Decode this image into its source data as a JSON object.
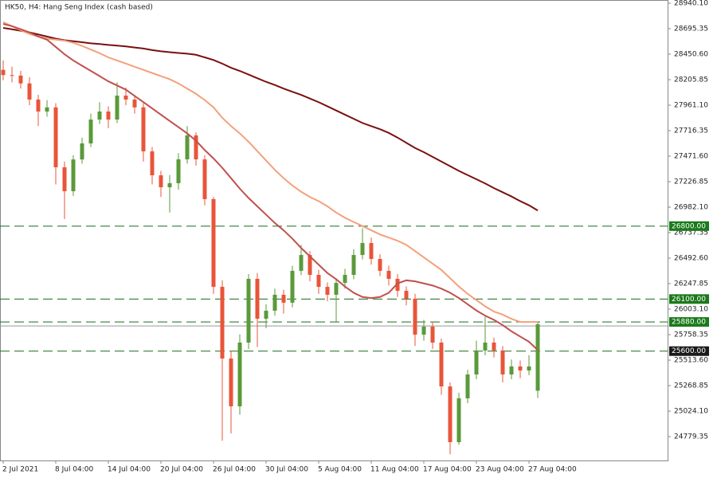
{
  "chart_data": {
    "type": "candlestick",
    "title": "HK50, H4:  Hang Seng Index (cash based)",
    "categories": [
      "2 Jul 2021",
      null,
      null,
      null,
      null,
      null,
      "8 Jul 04:00",
      null,
      null,
      null,
      null,
      null,
      "14 Jul 04:00",
      null,
      null,
      null,
      null,
      null,
      "20 Jul 04:00",
      null,
      null,
      null,
      null,
      null,
      "26 Jul 04:00",
      null,
      null,
      null,
      null,
      null,
      "30 Jul 04:00",
      null,
      null,
      null,
      null,
      null,
      "5 Aug 04:00",
      null,
      null,
      null,
      null,
      null,
      "11 Aug 04:00",
      null,
      null,
      null,
      null,
      null,
      "17 Aug 04:00",
      null,
      null,
      null,
      null,
      null,
      "23 Aug 04:00",
      null,
      null,
      null,
      null,
      null,
      "27 Aug 04:00",
      null
    ],
    "candles": [
      [
        28300,
        28390,
        28200,
        28250
      ],
      [
        28250,
        28330,
        28180,
        28245
      ],
      [
        28245,
        28290,
        28120,
        28170
      ],
      [
        28170,
        28230,
        27960,
        28015
      ],
      [
        28015,
        28060,
        27760,
        27900
      ],
      [
        27900,
        28010,
        27850,
        27940
      ],
      [
        27940,
        27980,
        27200,
        27365
      ],
      [
        27365,
        27420,
        26868,
        27135
      ],
      [
        27135,
        27480,
        27090,
        27440
      ],
      [
        27440,
        27650,
        27400,
        27594
      ],
      [
        27594,
        27880,
        27560,
        27823
      ],
      [
        27823,
        27990,
        27780,
        27900
      ],
      [
        27900,
        27950,
        27740,
        27823
      ],
      [
        27823,
        28180,
        27790,
        28053
      ],
      [
        28053,
        28130,
        27960,
        28015
      ],
      [
        28015,
        28060,
        27880,
        27940
      ],
      [
        27940,
        27980,
        27420,
        27518
      ],
      [
        27518,
        27560,
        27200,
        27288
      ],
      [
        27288,
        27330,
        27080,
        27173
      ],
      [
        27173,
        27290,
        26930,
        27212
      ],
      [
        27212,
        27500,
        27150,
        27441
      ],
      [
        27441,
        27760,
        27400,
        27671
      ],
      [
        27671,
        27700,
        27380,
        27441
      ],
      [
        27441,
        27480,
        27000,
        27059
      ],
      [
        27059,
        27080,
        26150,
        26217
      ],
      [
        26217,
        26280,
        24740,
        25529
      ],
      [
        25529,
        25600,
        24810,
        25070
      ],
      [
        25070,
        25760,
        24990,
        25682
      ],
      [
        25682,
        26340,
        25620,
        26294
      ],
      [
        26294,
        26350,
        25640,
        25911
      ],
      [
        25911,
        26050,
        25820,
        25988
      ],
      [
        25988,
        26200,
        25940,
        26141
      ],
      [
        26141,
        26190,
        25960,
        26065
      ],
      [
        26065,
        26420,
        26020,
        26371
      ],
      [
        26371,
        26620,
        26330,
        26523
      ],
      [
        26523,
        26560,
        26270,
        26332
      ],
      [
        26332,
        26380,
        26150,
        26217
      ],
      [
        26217,
        26260,
        26080,
        26141
      ],
      [
        26141,
        26300,
        25880,
        26255
      ],
      [
        26255,
        26390,
        26200,
        26332
      ],
      [
        26332,
        26580,
        26290,
        26523
      ],
      [
        26523,
        26780,
        26480,
        26638
      ],
      [
        26638,
        26690,
        26430,
        26485
      ],
      [
        26485,
        26530,
        26320,
        26371
      ],
      [
        26371,
        26420,
        26230,
        26294
      ],
      [
        26294,
        26340,
        26120,
        26179
      ],
      [
        26179,
        26220,
        26040,
        26103
      ],
      [
        26103,
        26150,
        25650,
        25758
      ],
      [
        25758,
        25900,
        25700,
        25835
      ],
      [
        25835,
        25880,
        25620,
        25682
      ],
      [
        25682,
        25720,
        25180,
        25261
      ],
      [
        25261,
        25300,
        24610,
        24726
      ],
      [
        24726,
        25200,
        24700,
        25147
      ],
      [
        25147,
        25420,
        25100,
        25376
      ],
      [
        25376,
        25700,
        25330,
        25606
      ],
      [
        25606,
        25930,
        25560,
        25682
      ],
      [
        25682,
        25730,
        25540,
        25606
      ],
      [
        25606,
        25650,
        25300,
        25376
      ],
      [
        25376,
        25520,
        25330,
        25453
      ],
      [
        25453,
        25510,
        25340,
        25414
      ],
      [
        25414,
        25560,
        25370,
        25453
      ],
      [
        25220,
        25880,
        25150,
        25858
      ]
    ],
    "bull_color": "#5a9a3a",
    "bear_color": "#e8553a",
    "series": [
      {
        "color": "#7a1010",
        "values": [
          28703,
          28690,
          28675,
          28660,
          28640,
          28620,
          28600,
          28585,
          28575,
          28565,
          28555,
          28548,
          28540,
          28533,
          28525,
          28515,
          28505,
          28490,
          28478,
          28470,
          28462,
          28455,
          28445,
          28420,
          28395,
          28360,
          28320,
          28290,
          28255,
          28220,
          28185,
          28155,
          28120,
          28090,
          28060,
          28025,
          27990,
          27950,
          27910,
          27870,
          27830,
          27790,
          27760,
          27730,
          27695,
          27650,
          27600,
          27550,
          27510,
          27465,
          27420,
          27375,
          27330,
          27290,
          27250,
          27210,
          27165,
          27125,
          27085,
          27040,
          27000,
          26950
        ]
      },
      {
        "color": "#f4a07a",
        "values": [
          28757,
          28720,
          28680,
          28645,
          28620,
          28600,
          28590,
          28580,
          28560,
          28530,
          28495,
          28460,
          28420,
          28390,
          28360,
          28330,
          28300,
          28270,
          28240,
          28210,
          28170,
          28120,
          28070,
          28010,
          27940,
          27840,
          27760,
          27690,
          27610,
          27520,
          27430,
          27340,
          27260,
          27190,
          27130,
          27080,
          27040,
          26990,
          26930,
          26880,
          26840,
          26800,
          26760,
          26720,
          26690,
          26660,
          26620,
          26560,
          26500,
          26440,
          26380,
          26300,
          26220,
          26150,
          26090,
          26030,
          25980,
          25950,
          25910,
          25880,
          25880,
          25880
        ]
      },
      {
        "color": "#c0504d",
        "values": [
          28741,
          28720,
          28690,
          28660,
          28620,
          28590,
          28520,
          28450,
          28390,
          28340,
          28290,
          28240,
          28190,
          28150,
          28110,
          28050,
          27990,
          27930,
          27870,
          27810,
          27750,
          27690,
          27620,
          27530,
          27450,
          27360,
          27260,
          27160,
          27070,
          26990,
          26910,
          26830,
          26760,
          26680,
          26590,
          26510,
          26430,
          26350,
          26290,
          26220,
          26160,
          26120,
          26110,
          26120,
          26160,
          26250,
          26280,
          26270,
          26250,
          26230,
          26200,
          26160,
          26110,
          26050,
          25990,
          25940,
          25900,
          25850,
          25790,
          25740,
          25690,
          25610
        ]
      }
    ],
    "levels": [
      {
        "value": 26800,
        "label": "26800.00",
        "color": "#1a7a1a"
      },
      {
        "value": 26100,
        "label": "26100.00",
        "color": "#1a7a1a"
      },
      {
        "value": 25880,
        "label": "25880.00",
        "color": "#1a7a1a"
      },
      {
        "value": 25600,
        "label": "25600.00",
        "color": "#1a1a1a"
      }
    ],
    "current_price": 25842,
    "ylim": [
      24550.3,
      28970.7
    ],
    "yticks": [
      {
        "value": 28940.1,
        "label": "28940.10"
      },
      28695.35,
      {
        "value": 28450.6,
        "label": "28450.60"
      },
      28205.85,
      {
        "value": 27961.1,
        "label": "27961.10"
      },
      27716.35,
      {
        "value": 27471.6,
        "label": "27471.60"
      },
      27226.85,
      {
        "value": 26982.1,
        "label": "26982.10"
      },
      26737.35,
      {
        "value": 26492.6,
        "label": "26492.60"
      },
      26247.85,
      {
        "value": 26003.1,
        "label": "26003.10"
      },
      25758.35,
      {
        "value": 25513.6,
        "label": "25513.60"
      },
      25268.85,
      {
        "value": 25024.1,
        "label": "25024.10"
      },
      24779.35
    ]
  }
}
